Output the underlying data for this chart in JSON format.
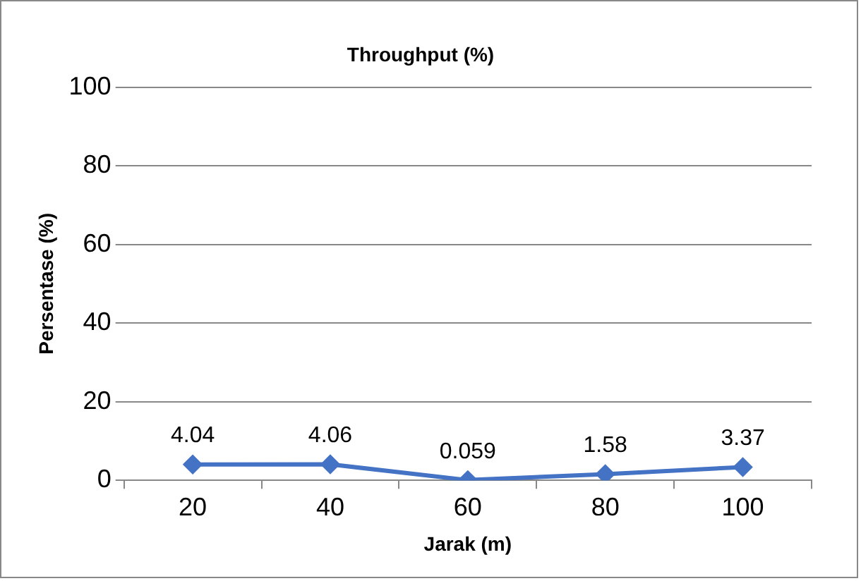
{
  "chart_data": {
    "type": "line",
    "title": "Throughput (%)",
    "xlabel": "Jarak (m)",
    "ylabel": "Persentase (%)",
    "categories": [
      "20",
      "40",
      "60",
      "80",
      "100"
    ],
    "series": [
      {
        "color": "#4472c4",
        "values": [
          4.04,
          4.06,
          0.059,
          1.58,
          3.37
        ]
      }
    ],
    "ylim": [
      0,
      100
    ],
    "yticks": [
      0,
      20,
      40,
      60,
      80,
      100
    ],
    "grid": "y",
    "legend": false,
    "marker": "diamond",
    "line_style": "solid",
    "data_labels": true
  }
}
